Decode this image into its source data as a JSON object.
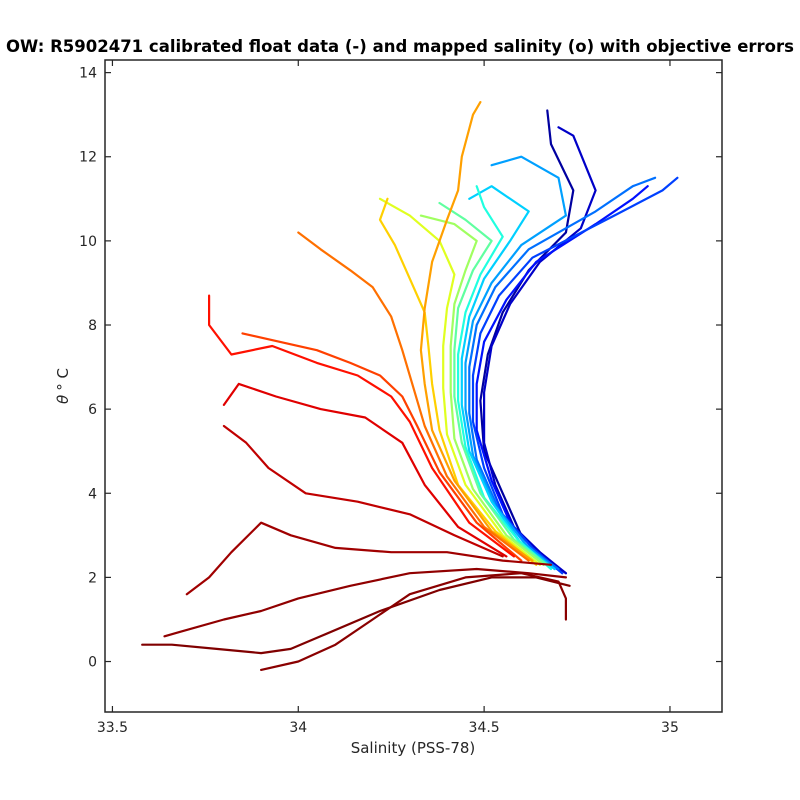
{
  "chart_data": {
    "type": "line",
    "title": "OW: R5902471 calibrated float data (-) and mapped salinity (o) with objective errors",
    "xlabel": "Salinity (PSS-78)",
    "ylabel_theta": "θ",
    "ylabel_unit": "° C",
    "xlim": [
      33.48,
      35.14
    ],
    "ylim": [
      -1.2,
      14.3
    ],
    "xticks": [
      33.5,
      34,
      34.5,
      35
    ],
    "xtick_labels": [
      "33.5",
      "34",
      "34.5",
      "35"
    ],
    "yticks": [
      0,
      2,
      4,
      6,
      8,
      10,
      12,
      14
    ],
    "ytick_labels": [
      "0",
      "2",
      "4",
      "6",
      "8",
      "10",
      "12",
      "14"
    ],
    "grid": false,
    "colormap": "jet",
    "colors": [
      "#000080",
      "#0000ff",
      "#0080ff",
      "#00ffff",
      "#80ff80",
      "#ffff00",
      "#ff8000",
      "#ff0000",
      "#800000"
    ],
    "series": [
      {
        "color": "#0000a0",
        "points": [
          [
            34.72,
            2.1
          ],
          [
            34.66,
            2.5
          ],
          [
            34.6,
            3.0
          ],
          [
            34.55,
            4.0
          ],
          [
            34.5,
            5.0
          ],
          [
            34.49,
            6.2
          ],
          [
            34.51,
            7.3
          ],
          [
            34.55,
            8.3
          ],
          [
            34.62,
            9.3
          ],
          [
            34.72,
            10.2
          ],
          [
            34.74,
            11.2
          ],
          [
            34.68,
            12.3
          ],
          [
            34.67,
            13.1
          ]
        ]
      },
      {
        "color": "#0000c8",
        "points": [
          [
            34.72,
            2.1
          ],
          [
            34.65,
            2.6
          ],
          [
            34.58,
            3.2
          ],
          [
            34.53,
            4.2
          ],
          [
            34.5,
            5.2
          ],
          [
            34.5,
            6.4
          ],
          [
            34.52,
            7.5
          ],
          [
            34.57,
            8.5
          ],
          [
            34.65,
            9.5
          ],
          [
            34.76,
            10.3
          ],
          [
            34.8,
            11.2
          ],
          [
            34.74,
            12.5
          ],
          [
            34.7,
            12.7
          ]
        ]
      },
      {
        "color": "#0010ff",
        "points": [
          [
            34.71,
            2.1
          ],
          [
            34.64,
            2.6
          ],
          [
            34.57,
            3.3
          ],
          [
            34.52,
            4.3
          ],
          [
            34.48,
            5.5
          ],
          [
            34.48,
            6.6
          ],
          [
            34.5,
            7.6
          ],
          [
            34.56,
            8.6
          ],
          [
            34.64,
            9.5
          ],
          [
            34.8,
            10.4
          ],
          [
            34.9,
            11.0
          ],
          [
            34.94,
            11.3
          ]
        ]
      },
      {
        "color": "#0040ff",
        "points": [
          [
            34.71,
            2.1
          ],
          [
            34.63,
            2.7
          ],
          [
            34.55,
            3.5
          ],
          [
            34.5,
            4.6
          ],
          [
            34.47,
            5.7
          ],
          [
            34.47,
            6.8
          ],
          [
            34.49,
            7.8
          ],
          [
            34.54,
            8.7
          ],
          [
            34.63,
            9.6
          ],
          [
            34.85,
            10.6
          ],
          [
            34.98,
            11.2
          ],
          [
            35.02,
            11.5
          ]
        ]
      },
      {
        "color": "#0070ff",
        "points": [
          [
            34.7,
            2.2
          ],
          [
            34.62,
            2.7
          ],
          [
            34.54,
            3.6
          ],
          [
            34.48,
            4.8
          ],
          [
            34.46,
            5.9
          ],
          [
            34.46,
            7.0
          ],
          [
            34.48,
            8.0
          ],
          [
            34.53,
            8.9
          ],
          [
            34.62,
            9.8
          ],
          [
            34.8,
            10.7
          ],
          [
            34.9,
            11.3
          ],
          [
            34.96,
            11.5
          ]
        ]
      },
      {
        "color": "#00a0ff",
        "points": [
          [
            34.69,
            2.2
          ],
          [
            34.61,
            2.8
          ],
          [
            34.53,
            3.7
          ],
          [
            34.47,
            4.9
          ],
          [
            34.45,
            6.0
          ],
          [
            34.45,
            7.1
          ],
          [
            34.47,
            8.1
          ],
          [
            34.52,
            9.0
          ],
          [
            34.6,
            9.9
          ],
          [
            34.72,
            10.6
          ],
          [
            34.7,
            11.5
          ],
          [
            34.6,
            12.0
          ],
          [
            34.52,
            11.8
          ]
        ]
      },
      {
        "color": "#00d0ff",
        "points": [
          [
            34.69,
            2.2
          ],
          [
            34.6,
            2.8
          ],
          [
            34.52,
            3.8
          ],
          [
            34.46,
            5.0
          ],
          [
            34.44,
            6.1
          ],
          [
            34.44,
            7.2
          ],
          [
            34.46,
            8.2
          ],
          [
            34.5,
            9.1
          ],
          [
            34.57,
            10.0
          ],
          [
            34.62,
            10.7
          ],
          [
            34.52,
            11.3
          ],
          [
            34.46,
            11.0
          ]
        ]
      },
      {
        "color": "#20ffe0",
        "points": [
          [
            34.68,
            2.2
          ],
          [
            34.59,
            2.9
          ],
          [
            34.5,
            3.9
          ],
          [
            34.45,
            5.1
          ],
          [
            34.43,
            6.2
          ],
          [
            34.43,
            7.3
          ],
          [
            34.45,
            8.3
          ],
          [
            34.49,
            9.2
          ],
          [
            34.55,
            10.1
          ],
          [
            34.5,
            10.8
          ],
          [
            34.48,
            11.3
          ]
        ]
      },
      {
        "color": "#60ffa0",
        "points": [
          [
            34.67,
            2.3
          ],
          [
            34.58,
            2.9
          ],
          [
            34.49,
            4.0
          ],
          [
            34.44,
            5.2
          ],
          [
            34.42,
            6.3
          ],
          [
            34.42,
            7.4
          ],
          [
            34.43,
            8.4
          ],
          [
            34.47,
            9.3
          ],
          [
            34.52,
            10.0
          ],
          [
            34.45,
            10.5
          ],
          [
            34.38,
            10.9
          ]
        ]
      },
      {
        "color": "#a0ff60",
        "points": [
          [
            34.66,
            2.3
          ],
          [
            34.56,
            3.0
          ],
          [
            34.47,
            4.1
          ],
          [
            34.42,
            5.3
          ],
          [
            34.41,
            6.4
          ],
          [
            34.41,
            7.5
          ],
          [
            34.42,
            8.5
          ],
          [
            34.45,
            9.3
          ],
          [
            34.48,
            10.0
          ],
          [
            34.42,
            10.4
          ],
          [
            34.33,
            10.6
          ]
        ]
      },
      {
        "color": "#e0ff20",
        "points": [
          [
            34.65,
            2.3
          ],
          [
            34.55,
            3.0
          ],
          [
            34.45,
            4.2
          ],
          [
            34.4,
            5.4
          ],
          [
            34.39,
            6.5
          ],
          [
            34.39,
            7.5
          ],
          [
            34.4,
            8.4
          ],
          [
            34.42,
            9.2
          ],
          [
            34.38,
            10.0
          ],
          [
            34.3,
            10.6
          ],
          [
            34.22,
            11.0
          ]
        ]
      },
      {
        "color": "#ffd000",
        "points": [
          [
            34.64,
            2.3
          ],
          [
            34.53,
            3.1
          ],
          [
            34.43,
            4.2
          ],
          [
            34.38,
            5.5
          ],
          [
            34.36,
            6.6
          ],
          [
            34.35,
            7.5
          ],
          [
            34.34,
            8.3
          ],
          [
            34.3,
            9.1
          ],
          [
            34.26,
            9.9
          ],
          [
            34.22,
            10.5
          ],
          [
            34.24,
            11.0
          ]
        ]
      },
      {
        "color": "#ffa000",
        "points": [
          [
            34.63,
            2.4
          ],
          [
            34.52,
            3.1
          ],
          [
            34.42,
            4.3
          ],
          [
            34.36,
            5.5
          ],
          [
            34.34,
            6.6
          ],
          [
            34.33,
            7.4
          ],
          [
            34.34,
            8.4
          ],
          [
            34.36,
            9.5
          ],
          [
            34.4,
            10.5
          ],
          [
            34.43,
            11.2
          ],
          [
            34.44,
            12.0
          ],
          [
            34.47,
            13.0
          ],
          [
            34.49,
            13.3
          ]
        ]
      },
      {
        "color": "#ff7000",
        "points": [
          [
            34.62,
            2.4
          ],
          [
            34.5,
            3.2
          ],
          [
            34.4,
            4.4
          ],
          [
            34.34,
            5.6
          ],
          [
            34.31,
            6.5
          ],
          [
            34.28,
            7.4
          ],
          [
            34.25,
            8.2
          ],
          [
            34.2,
            8.9
          ],
          [
            34.14,
            9.3
          ],
          [
            34.06,
            9.8
          ],
          [
            34.0,
            10.2
          ]
        ]
      },
      {
        "color": "#ff4000",
        "points": [
          [
            34.6,
            2.4
          ],
          [
            34.48,
            3.3
          ],
          [
            34.38,
            4.5
          ],
          [
            34.32,
            5.6
          ],
          [
            34.28,
            6.3
          ],
          [
            34.22,
            6.8
          ],
          [
            34.14,
            7.1
          ],
          [
            34.05,
            7.4
          ],
          [
            33.95,
            7.6
          ],
          [
            33.85,
            7.8
          ]
        ]
      },
      {
        "color": "#ff1000",
        "points": [
          [
            34.58,
            2.5
          ],
          [
            34.46,
            3.3
          ],
          [
            34.36,
            4.6
          ],
          [
            34.3,
            5.7
          ],
          [
            34.25,
            6.3
          ],
          [
            34.16,
            6.8
          ],
          [
            34.05,
            7.1
          ],
          [
            33.93,
            7.5
          ],
          [
            33.82,
            7.3
          ],
          [
            33.76,
            8.0
          ],
          [
            33.76,
            8.7
          ]
        ]
      },
      {
        "color": "#e00000",
        "points": [
          [
            34.56,
            2.5
          ],
          [
            34.43,
            3.2
          ],
          [
            34.34,
            4.2
          ],
          [
            34.28,
            5.2
          ],
          [
            34.18,
            5.8
          ],
          [
            34.06,
            6.0
          ],
          [
            33.94,
            6.3
          ],
          [
            33.84,
            6.6
          ],
          [
            33.8,
            6.1
          ]
        ]
      },
      {
        "color": "#c00000",
        "points": [
          [
            34.55,
            2.5
          ],
          [
            34.42,
            3.0
          ],
          [
            34.3,
            3.5
          ],
          [
            34.16,
            3.8
          ],
          [
            34.02,
            4.0
          ],
          [
            33.92,
            4.6
          ],
          [
            33.86,
            5.2
          ],
          [
            33.8,
            5.6
          ]
        ]
      },
      {
        "color": "#a00000",
        "points": [
          [
            34.68,
            2.3
          ],
          [
            34.55,
            2.4
          ],
          [
            34.4,
            2.6
          ],
          [
            34.25,
            2.6
          ],
          [
            34.1,
            2.7
          ],
          [
            33.98,
            3.0
          ],
          [
            33.9,
            3.3
          ],
          [
            33.82,
            2.6
          ],
          [
            33.76,
            2.0
          ],
          [
            33.7,
            1.6
          ]
        ]
      },
      {
        "color": "#900000",
        "points": [
          [
            34.72,
            2.0
          ],
          [
            34.62,
            2.1
          ],
          [
            34.48,
            2.2
          ],
          [
            34.3,
            2.1
          ],
          [
            34.14,
            1.8
          ],
          [
            34.0,
            1.5
          ],
          [
            33.9,
            1.2
          ],
          [
            33.8,
            1.0
          ],
          [
            33.68,
            0.7
          ],
          [
            33.64,
            0.6
          ]
        ]
      },
      {
        "color": "#800000",
        "points": [
          [
            34.73,
            1.8
          ],
          [
            34.64,
            2.0
          ],
          [
            34.52,
            2.0
          ],
          [
            34.38,
            1.7
          ],
          [
            34.22,
            1.2
          ],
          [
            34.06,
            0.6
          ],
          [
            33.98,
            0.3
          ],
          [
            33.9,
            0.2
          ],
          [
            33.78,
            0.3
          ],
          [
            33.66,
            0.4
          ],
          [
            33.58,
            0.4
          ]
        ]
      },
      {
        "color": "#8a0000",
        "points": [
          [
            34.72,
            1.0
          ],
          [
            34.72,
            1.5
          ],
          [
            34.7,
            1.9
          ],
          [
            34.6,
            2.1
          ],
          [
            34.45,
            2.0
          ],
          [
            34.3,
            1.6
          ],
          [
            34.2,
            1.0
          ],
          [
            34.1,
            0.4
          ],
          [
            34.0,
            0.0
          ],
          [
            33.9,
            -0.2
          ]
        ]
      }
    ]
  }
}
